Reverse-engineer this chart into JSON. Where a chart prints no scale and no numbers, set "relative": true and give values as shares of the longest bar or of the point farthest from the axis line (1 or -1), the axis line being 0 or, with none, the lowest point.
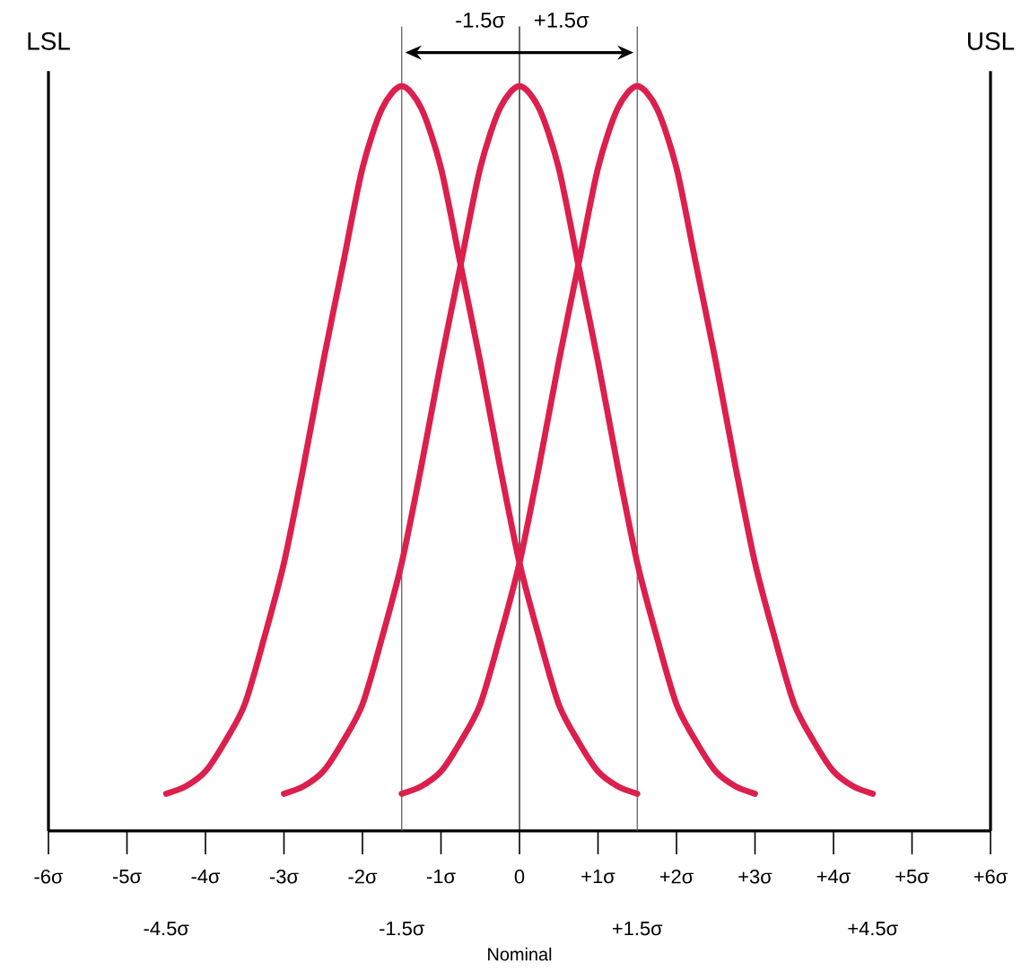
{
  "chart_data": {
    "type": "line",
    "relative": true,
    "xlim": [
      -6,
      6
    ],
    "xticks": [
      {
        "value": -6,
        "label": "-6σ"
      },
      {
        "value": -5,
        "label": "-5σ"
      },
      {
        "value": -4,
        "label": "-4σ"
      },
      {
        "value": -3,
        "label": "-3σ"
      },
      {
        "value": -2,
        "label": "-2σ"
      },
      {
        "value": -1,
        "label": "-1σ"
      },
      0,
      {
        "value": 1,
        "label": "+1σ"
      },
      {
        "value": 2,
        "label": "+2σ"
      },
      {
        "value": 3,
        "label": "+3σ"
      },
      {
        "value": 4,
        "label": "+4σ"
      },
      {
        "value": 5,
        "label": "+5σ"
      },
      {
        "value": 6,
        "label": "+6σ"
      }
    ],
    "series": [
      {
        "color": "#dc1f4c",
        "x": [
          -4.5,
          -4.25,
          -4,
          -3.75,
          -3.5,
          -3.25,
          -3,
          -2.75,
          -2.5,
          -2.25,
          -2,
          -1.75,
          -1.5,
          -1.25,
          -1,
          -0.75,
          -0.5,
          -0.25,
          0,
          0.25,
          0.5,
          0.75,
          1,
          1.25,
          1.5
        ],
        "values": [
          0.05,
          0.06,
          0.08,
          0.12,
          0.17,
          0.26,
          0.36,
          0.49,
          0.63,
          0.76,
          0.89,
          0.97,
          1.0,
          0.97,
          0.89,
          0.76,
          0.63,
          0.49,
          0.36,
          0.26,
          0.17,
          0.12,
          0.08,
          0.06,
          0.05
        ]
      },
      {
        "color": "#dc1f4c",
        "x": [
          -3,
          -2.75,
          -2.5,
          -2.25,
          -2,
          -1.75,
          -1.5,
          -1.25,
          -1,
          -0.75,
          -0.5,
          -0.25,
          0,
          0.25,
          0.5,
          0.75,
          1,
          1.25,
          1.5,
          1.75,
          2,
          2.25,
          2.5,
          2.75,
          3
        ],
        "values": [
          0.05,
          0.06,
          0.08,
          0.12,
          0.17,
          0.26,
          0.36,
          0.49,
          0.63,
          0.76,
          0.89,
          0.97,
          1.0,
          0.97,
          0.89,
          0.76,
          0.63,
          0.49,
          0.36,
          0.26,
          0.17,
          0.12,
          0.08,
          0.06,
          0.05
        ]
      },
      {
        "color": "#dc1f4c",
        "x": [
          -1.5,
          -1.25,
          -1,
          -0.75,
          -0.5,
          -0.25,
          0,
          0.25,
          0.5,
          0.75,
          1,
          1.25,
          1.5,
          1.75,
          2,
          2.25,
          2.5,
          2.75,
          3,
          3.25,
          3.5,
          3.75,
          4,
          4.25,
          4.5
        ],
        "values": [
          0.05,
          0.06,
          0.08,
          0.12,
          0.17,
          0.26,
          0.36,
          0.49,
          0.63,
          0.76,
          0.89,
          0.97,
          1.0,
          0.97,
          0.89,
          0.76,
          0.63,
          0.49,
          0.36,
          0.26,
          0.17,
          0.12,
          0.08,
          0.06,
          0.05
        ]
      }
    ],
    "ref_lines": [
      {
        "axis": "x",
        "value": -6,
        "label": "LSL",
        "color": "#000000"
      },
      {
        "axis": "x",
        "value": 6,
        "label": "USL",
        "color": "#000000"
      },
      {
        "axis": "x",
        "value": -1.5,
        "color": "#555555"
      },
      {
        "axis": "x",
        "value": 0,
        "color": "#000000"
      },
      {
        "axis": "x",
        "value": 1.5,
        "color": "#555555"
      }
    ],
    "annotations": [
      "-1.5σ",
      "+1.5σ",
      "Nominal",
      "-4.5σ",
      "-1.5σ",
      "+1.5σ",
      "+4.5σ"
    ]
  }
}
